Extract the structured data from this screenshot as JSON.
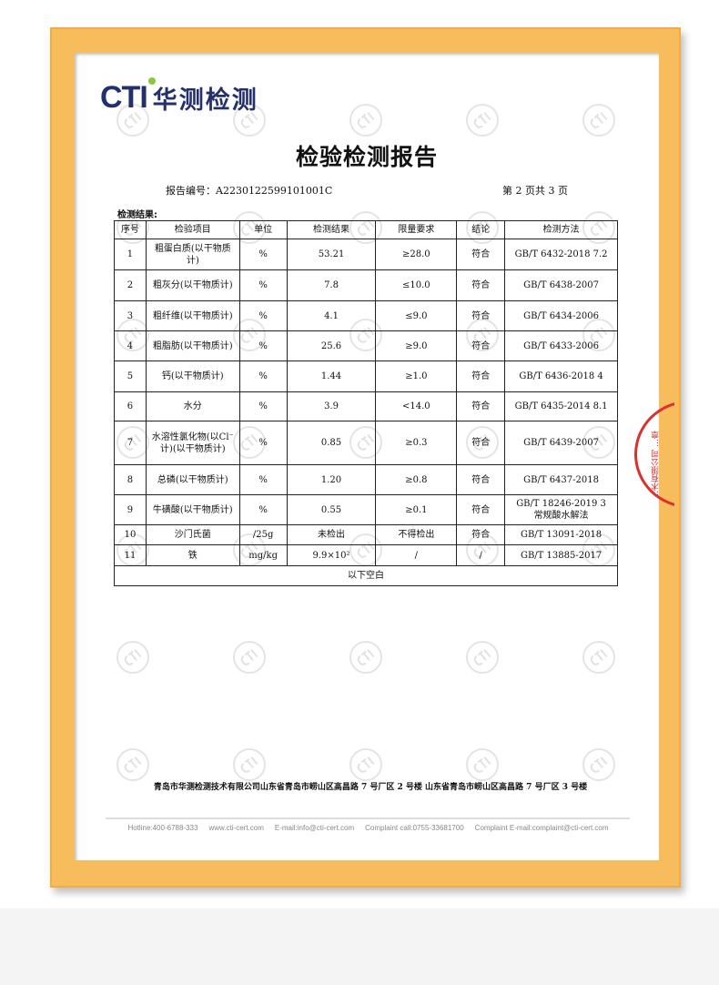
{
  "logo": {
    "mark": "CTI",
    "name": "华测检测",
    "accent": "#8cc63f",
    "brand": "#24306b"
  },
  "watermark": "CTI",
  "title": "检验检测报告",
  "report_no": "报告编号：A2230122599101001C",
  "page_no": "第 2 页共 3 页",
  "results_label": "检测结果:",
  "table": {
    "headers": [
      "序号",
      "检验项目",
      "单位",
      "检测结果",
      "限量要求",
      "结论",
      "检测方法"
    ],
    "rows": [
      [
        "1",
        "粗蛋白质(以干物质计)",
        "%",
        "53.21",
        "≥28.0",
        "符合",
        "GB/T 6432-2018 7.2"
      ],
      [
        "2",
        "粗灰分(以干物质计)",
        "%",
        "7.8",
        "≤10.0",
        "符合",
        "GB/T 6438-2007"
      ],
      [
        "3",
        "粗纤维(以干物质计)",
        "%",
        "4.1",
        "≤9.0",
        "符合",
        "GB/T 6434-2006"
      ],
      [
        "4",
        "粗脂肪(以干物质计)",
        "%",
        "25.6",
        "≥9.0",
        "符合",
        "GB/T 6433-2006"
      ],
      [
        "5",
        "钙(以干物质计)",
        "%",
        "1.44",
        "≥1.0",
        "符合",
        "GB/T 6436-2018 4"
      ],
      [
        "6",
        "水分",
        "%",
        "3.9",
        "<14.0",
        "符合",
        "GB/T 6435-2014 8.1"
      ],
      [
        "7",
        "水溶性氯化物(以Cl⁻计)(以干物质计)",
        "%",
        "0.85",
        "≥0.3",
        "符合",
        "GB/T 6439-2007"
      ],
      [
        "8",
        "总磷(以干物质计)",
        "%",
        "1.20",
        "≥0.8",
        "符合",
        "GB/T 6437-2018"
      ],
      [
        "9",
        "牛磺酸(以干物质计)",
        "%",
        "0.55",
        "≥0.1",
        "符合",
        "GB/T 18246-2019 3 常规酸水解法"
      ],
      [
        "10",
        "沙门氏菌",
        "/25g",
        "未检出",
        "不得检出",
        "符合",
        "GB/T 13091-2018"
      ],
      [
        "11",
        "铁",
        "mg/kg",
        "9.9×10²",
        "/",
        "/",
        "GB/T 13885-2017"
      ]
    ],
    "footer": "以下空白"
  },
  "address": "青岛市华测检测技术有限公司山东省青岛市崂山区高昌路 7 号厂区 2 号楼 山东省青岛市崂山区高昌路 7 号厂区 3 号楼",
  "contact": [
    "Hotline:400-6788-333",
    "www.cti-cert.com",
    "E-mail:info@cti-cert.com",
    "Complaint call:0755-33681700",
    "Complaint E-mail:complaint@cti-cert.com"
  ],
  "stamp": {
    "text": "…术有限公司 …章",
    "color": "#d9312f"
  },
  "colors": {
    "frame": "#f7bd5c"
  }
}
